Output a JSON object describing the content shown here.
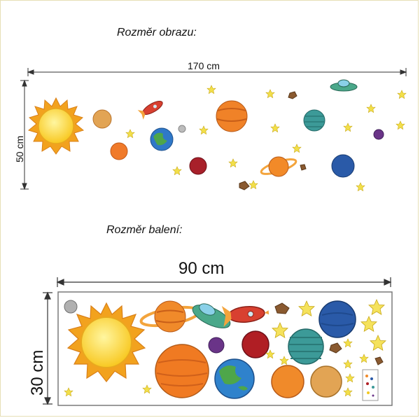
{
  "image_section": {
    "title": "Rozměr obrazu:",
    "width_label": "170 cm",
    "height_label": "50 cm"
  },
  "package_section": {
    "title": "Rozměr balení:",
    "width_label": "90 cm",
    "height_label": "30 cm"
  },
  "colors": {
    "sun": "#f8c821",
    "orange_planet": "#f08a2a",
    "blue_planet": "#2a64b0",
    "earth_green": "#45a045",
    "red_planet": "#b81e20",
    "teal_planet": "#3a9a94",
    "purple_planet": "#6a3a8a",
    "star": "#f2df4a",
    "frame": "#e6dfb6"
  }
}
